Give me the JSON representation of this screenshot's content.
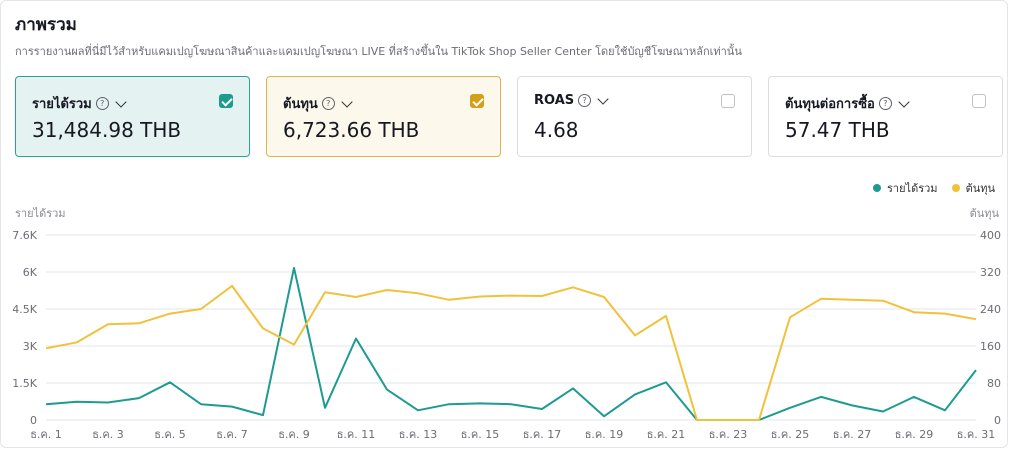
{
  "header": {
    "title": "ภาพรวม",
    "subtitle": "การรายงานผลที่นี่มีไว้สำหรับแคมเปญโฆษณาสินค้าและแคมเปญโฆษณา LIVE ที่สร้างขึ้นใน TikTok Shop Seller Center โดยใช้บัญชีโฆษณาหลักเท่านั้น"
  },
  "cards": [
    {
      "label": "รายได้รวม",
      "value": "31,484.98 THB",
      "checked": true,
      "accent": "#1e9b91"
    },
    {
      "label": "ต้นทุน",
      "value": "6,723.66 THB",
      "checked": true,
      "accent": "#d4a017"
    },
    {
      "label": "ROAS",
      "value": "4.68",
      "checked": false
    },
    {
      "label": "ต้นทุนต่อการซื้อ",
      "value": "57.47 THB",
      "checked": false
    }
  ],
  "icons": {
    "help": "?",
    "help_name": "help-circle-icon",
    "chevron": "chevron-down-icon"
  },
  "chart_data": {
    "type": "line",
    "legend": [
      {
        "name": "รายได้รวม",
        "color": "#1e9b91"
      },
      {
        "name": "ต้นทุน",
        "color": "#f2c13b"
      }
    ],
    "ylabel_left": "รายได้รวม",
    "ylabel_right": "ต้นทุน",
    "yticks_left": [
      "0",
      "1.5K",
      "3K",
      "4.5K",
      "6K",
      "7.6K"
    ],
    "yticks_right": [
      "0",
      "80",
      "160",
      "240",
      "320",
      "400"
    ],
    "ylim_left": [
      0,
      7600
    ],
    "ylim_right": [
      0,
      400
    ],
    "x": [
      "ธ.ค. 1",
      "ธ.ค. 2",
      "ธ.ค. 3",
      "ธ.ค. 4",
      "ธ.ค. 5",
      "ธ.ค. 6",
      "ธ.ค. 7",
      "ธ.ค. 8",
      "ธ.ค. 9",
      "ธ.ค. 10",
      "ธ.ค. 11",
      "ธ.ค. 12",
      "ธ.ค. 13",
      "ธ.ค. 14",
      "ธ.ค. 15",
      "ธ.ค. 16",
      "ธ.ค. 17",
      "ธ.ค. 18",
      "ธ.ค. 19",
      "ธ.ค. 20",
      "ธ.ค. 21",
      "ธ.ค. 22",
      "ธ.ค. 23",
      "ธ.ค. 24",
      "ธ.ค. 25",
      "ธ.ค. 26",
      "ธ.ค. 27",
      "ธ.ค. 28",
      "ธ.ค. 29",
      "ธ.ค. 30",
      "ธ.ค. 31"
    ],
    "xticks_shown": [
      "ธ.ค. 1",
      "ธ.ค. 3",
      "ธ.ค. 5",
      "ธ.ค. 7",
      "ธ.ค. 9",
      "ธ.ค. 11",
      "ธ.ค. 13",
      "ธ.ค. 15",
      "ธ.ค. 17",
      "ธ.ค. 19",
      "ธ.ค. 21",
      "ธ.ค. 23",
      "ธ.ค. 25",
      "ธ.ค. 27",
      "ธ.ค. 29",
      "ธ.ค. 31"
    ],
    "series": [
      {
        "name": "รายได้รวม",
        "axis": "left",
        "color": "#1e9b91",
        "values": [
          650,
          750,
          720,
          900,
          1550,
          650,
          550,
          200,
          6250,
          500,
          3350,
          1250,
          400,
          650,
          680,
          650,
          450,
          1300,
          150,
          1050,
          1550,
          0,
          0,
          0,
          500,
          950,
          600,
          350,
          950,
          400,
          2050
        ]
      },
      {
        "name": "ต้นทุน",
        "axis": "right",
        "color": "#f2c13b",
        "values": [
          155,
          168,
          207,
          209,
          230,
          240,
          290,
          198,
          163,
          276,
          266,
          281,
          274,
          260,
          267,
          269,
          268,
          287,
          266,
          183,
          225,
          0,
          0,
          0,
          222,
          262,
          260,
          258,
          233,
          230,
          218
        ]
      }
    ],
    "grid": true
  }
}
